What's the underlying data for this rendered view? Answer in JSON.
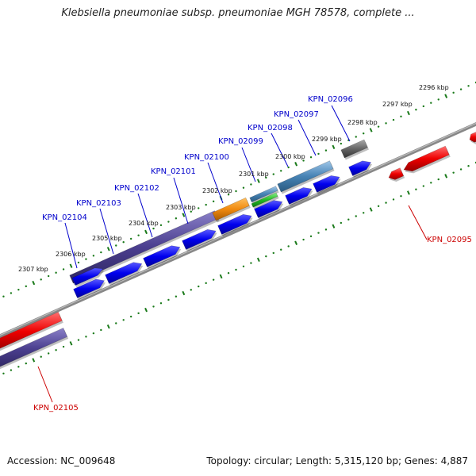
{
  "header": {
    "title": "Klebsiella pneumoniae subsp. pneumoniae MGH 78578, complete ..."
  },
  "footer": {
    "accession": "Accession: NC_009648",
    "summary": "Topology: circular; Length: 5,315,120 bp; Genes: 4,887"
  },
  "scale": {
    "ticks": [
      "2296 kbp",
      "2297 kbp",
      "2298 kbp",
      "2299 kbp",
      "2300 kbp",
      "2301 kbp",
      "2302 kbp",
      "2303 kbp",
      "2304 kbp",
      "2305 kbp",
      "2306 kbp",
      "2307 kbp"
    ]
  },
  "genes": {
    "upper_strand": [
      "KPN_02096",
      "KPN_02097",
      "KPN_02098",
      "KPN_02099",
      "KPN_02100",
      "KPN_02101",
      "KPN_02102",
      "KPN_02103",
      "KPN_02104"
    ],
    "lower_strand": [
      "KPN_02095",
      "KPN_02105"
    ]
  },
  "colors": {
    "upper_label": "#0000cc",
    "lower_label": "#cc0000",
    "cds_blue": "#0000ee",
    "gene_red": "#ee0000",
    "gene_purple": "#4b3f8f",
    "gene_orange": "#f08a10",
    "gene_steel": "#4682b4",
    "gene_green": "#22bb22",
    "gene_gray": "#666666",
    "backbone": "#888888",
    "tick_green": "#1a7a1a"
  }
}
